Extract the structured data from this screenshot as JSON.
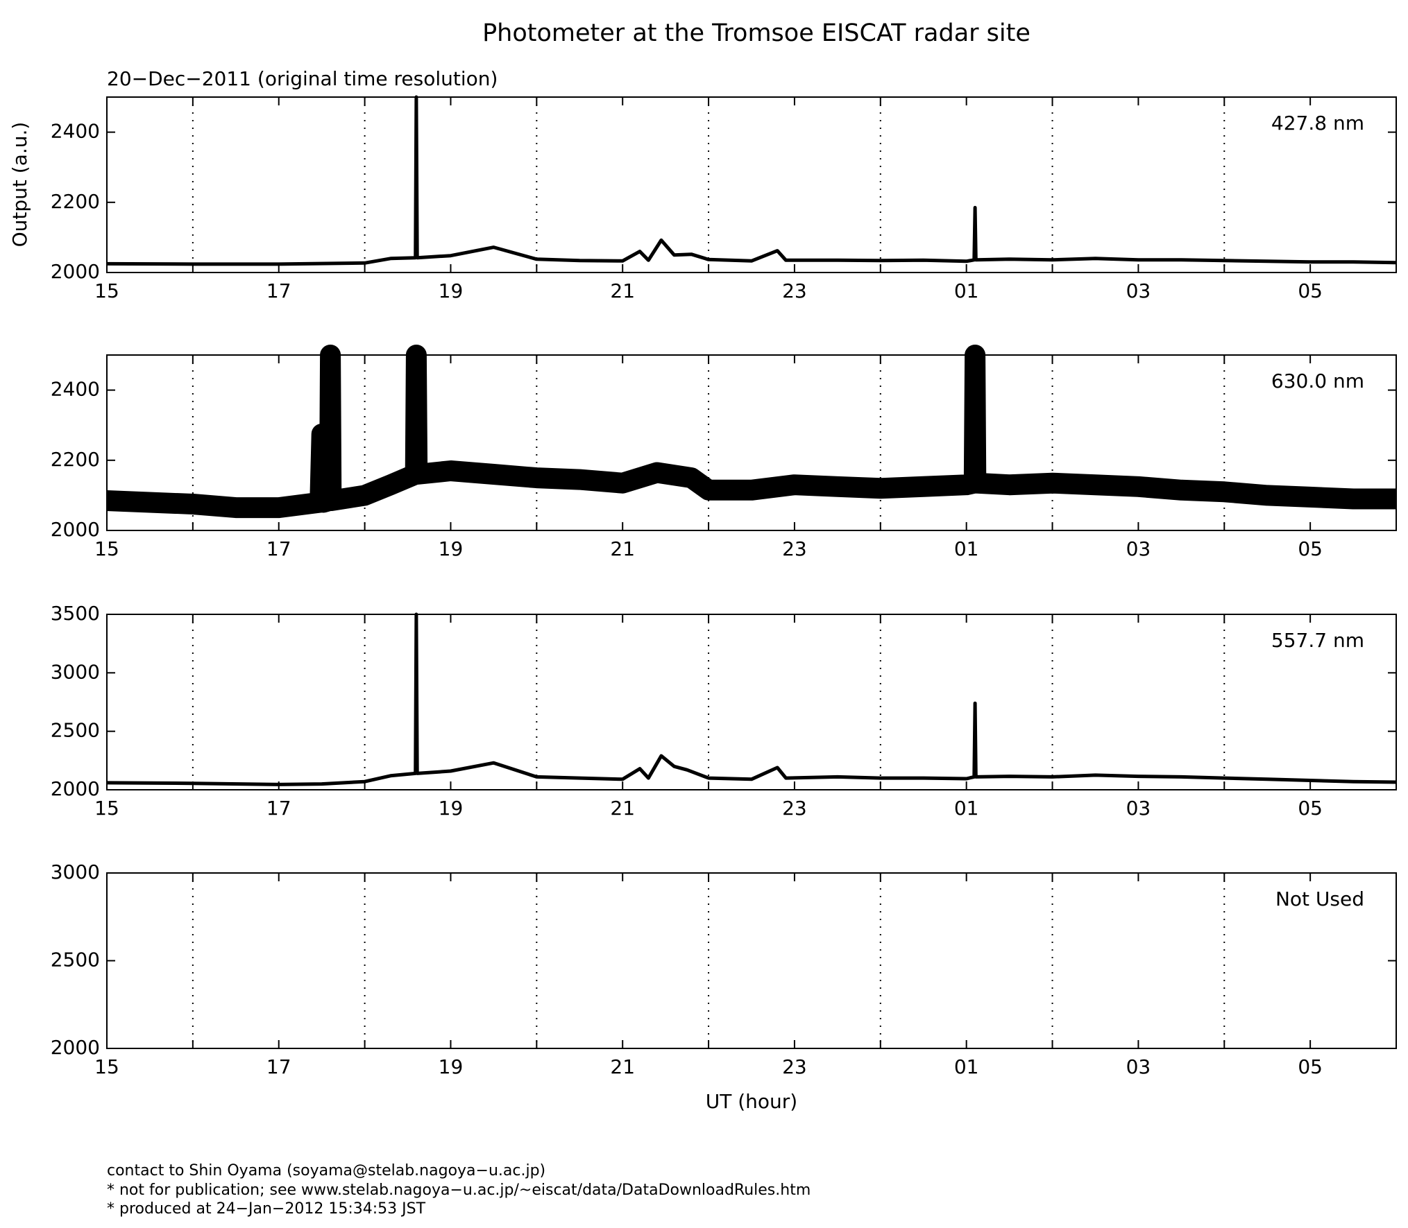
{
  "title": "Photometer at the Tromsoe EISCAT radar site",
  "subtitle": "20−Dec−2011 (original time resolution)",
  "ylabel": "Output (a.u.)",
  "xlabel": "UT (hour)",
  "footer": [
    "contact to Shin Oyama (soyama@stelab.nagoya−u.ac.jp)",
    "* not for publication; see www.stelab.nagoya−u.ac.jp/~eiscat/data/DataDownloadRules.htm",
    "* produced at 24−Jan−2012 15:34:53 JST"
  ],
  "chart_data": [
    {
      "type": "line",
      "annotation": "427.8 nm",
      "xlim": [
        15,
        30
      ],
      "xticks": [
        15,
        17,
        19,
        21,
        23,
        {
          "value": 25,
          "label": "01"
        },
        {
          "value": 27,
          "label": "03"
        },
        {
          "value": 29,
          "label": "05"
        }
      ],
      "xgrid": [
        16,
        18,
        20,
        22,
        24,
        26,
        28
      ],
      "ylim": [
        2000,
        2500
      ],
      "yticks": [
        2000,
        2200,
        2400
      ],
      "x": [
        15,
        16,
        17,
        18,
        18.3,
        18.59,
        18.6,
        18.61,
        19,
        19.5,
        20,
        20.5,
        21,
        21.2,
        21.3,
        21.45,
        21.6,
        21.8,
        22,
        22.5,
        22.8,
        22.9,
        23.5,
        24,
        24.5,
        25,
        25.09,
        25.1,
        25.11,
        25.5,
        26,
        26.5,
        27,
        27.5,
        28,
        28.5,
        29,
        29.5,
        30
      ],
      "series": [
        {
          "color": "#000000",
          "values": [
            2025,
            2024,
            2024,
            2027,
            2040,
            2042,
            2500,
            2042,
            2048,
            2072,
            2038,
            2034,
            2033,
            2060,
            2035,
            2092,
            2050,
            2052,
            2037,
            2033,
            2062,
            2035,
            2035,
            2034,
            2035,
            2032,
            2036,
            2185,
            2036,
            2038,
            2036,
            2040,
            2036,
            2036,
            2034,
            2032,
            2030,
            2030,
            2028
          ]
        }
      ]
    },
    {
      "type": "line",
      "annotation": "630.0 nm",
      "xlim": [
        15,
        30
      ],
      "xticks": [
        15,
        17,
        19,
        21,
        23,
        {
          "value": 25,
          "label": "01"
        },
        {
          "value": 27,
          "label": "03"
        },
        {
          "value": 29,
          "label": "05"
        }
      ],
      "xgrid": [
        16,
        18,
        20,
        22,
        24,
        26,
        28
      ],
      "ylim": [
        2000,
        2500
      ],
      "yticks": [
        2000,
        2200,
        2400
      ],
      "x": [
        15,
        16,
        16.5,
        17,
        17.48,
        17.5,
        17.52,
        17.59,
        17.6,
        17.61,
        18,
        18.3,
        18.59,
        18.6,
        18.61,
        19,
        19.5,
        20,
        20.5,
        21,
        21.4,
        21.8,
        22,
        22.5,
        23,
        23.5,
        24,
        24.5,
        25,
        25.09,
        25.1,
        25.11,
        25.5,
        26,
        26.5,
        27,
        27.5,
        28,
        28.5,
        29,
        29.5,
        30
      ],
      "series": [
        {
          "color": "#000000",
          "values": [
            2085,
            2075,
            2065,
            2065,
            2080,
            2275,
            2080,
            2085,
            2500,
            2085,
            2100,
            2130,
            2160,
            2500,
            2160,
            2170,
            2160,
            2150,
            2145,
            2135,
            2165,
            2150,
            2115,
            2115,
            2130,
            2125,
            2120,
            2125,
            2130,
            2135,
            2500,
            2135,
            2130,
            2135,
            2130,
            2125,
            2115,
            2110,
            2100,
            2095,
            2090,
            2090
          ]
        }
      ]
    },
    {
      "type": "line",
      "annotation": "557.7 nm",
      "xlim": [
        15,
        30
      ],
      "xticks": [
        15,
        17,
        19,
        21,
        23,
        {
          "value": 25,
          "label": "01"
        },
        {
          "value": 27,
          "label": "03"
        },
        {
          "value": 29,
          "label": "05"
        }
      ],
      "xgrid": [
        16,
        18,
        20,
        22,
        24,
        26,
        28
      ],
      "ylim": [
        2000,
        3500
      ],
      "yticks": [
        2000,
        2500,
        3000,
        3500
      ],
      "x": [
        15,
        16,
        17,
        17.5,
        18,
        18.3,
        18.59,
        18.6,
        18.61,
        19,
        19.5,
        20,
        20.5,
        21,
        21.2,
        21.3,
        21.45,
        21.6,
        21.75,
        22,
        22.5,
        22.8,
        22.9,
        23.5,
        24,
        24.5,
        25,
        25.09,
        25.1,
        25.11,
        25.5,
        26,
        26.5,
        27,
        27.5,
        28,
        28.5,
        29,
        29.5,
        30
      ],
      "series": [
        {
          "color": "#000000",
          "values": [
            2060,
            2055,
            2045,
            2050,
            2070,
            2120,
            2140,
            3500,
            2140,
            2160,
            2230,
            2110,
            2100,
            2090,
            2180,
            2100,
            2290,
            2200,
            2170,
            2100,
            2090,
            2190,
            2100,
            2110,
            2100,
            2100,
            2095,
            2110,
            2740,
            2110,
            2115,
            2110,
            2125,
            2115,
            2110,
            2100,
            2090,
            2080,
            2070,
            2065
          ]
        }
      ]
    },
    {
      "type": "line",
      "annotation": "Not Used",
      "xlim": [
        15,
        30
      ],
      "xticks": [
        15,
        17,
        19,
        21,
        23,
        {
          "value": 25,
          "label": "01"
        },
        {
          "value": 27,
          "label": "03"
        },
        {
          "value": 29,
          "label": "05"
        }
      ],
      "xgrid": [
        16,
        18,
        20,
        22,
        24,
        26,
        28
      ],
      "ylim": [
        2000,
        3000
      ],
      "yticks": [
        2000,
        2500,
        3000
      ]
    }
  ]
}
